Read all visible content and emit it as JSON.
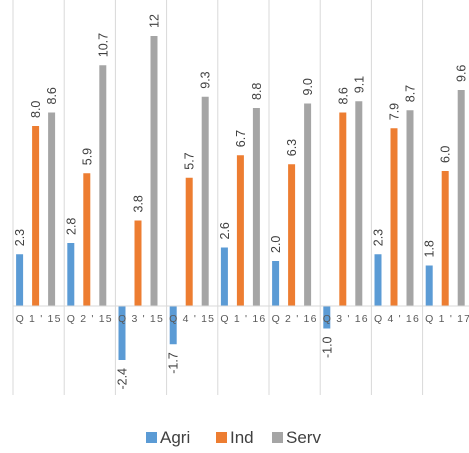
{
  "chart_data": {
    "type": "bar",
    "categories": [
      "Q1'15",
      "Q2'15",
      "Q3'15",
      "Q4'15",
      "Q1'16",
      "Q2'16",
      "Q3'16",
      "Q4'16",
      "Q1'17"
    ],
    "series": [
      {
        "name": "Agri",
        "color": "#5b9bd5",
        "values": [
          2.3,
          2.8,
          -2.4,
          -1.7,
          2.6,
          2.0,
          -1.0,
          2.3,
          1.8
        ]
      },
      {
        "name": "Ind",
        "color": "#ed7d31",
        "values": [
          8.0,
          5.9,
          3.8,
          5.7,
          6.7,
          6.3,
          8.6,
          7.9,
          6.0
        ]
      },
      {
        "name": "Serv",
        "color": "#a5a5a5",
        "values": [
          8.6,
          10.7,
          12.0,
          9.3,
          8.8,
          9.0,
          9.1,
          8.7,
          9.6
        ]
      }
    ],
    "value_labels": [
      [
        "2.3",
        "2.8",
        "-2.4",
        "-1.7",
        "2.6",
        "2.0",
        "-1.0",
        "2.3",
        "1.8"
      ],
      [
        "8.0",
        "5.9",
        "3.8",
        "5.7",
        "6.7",
        "6.3",
        "8.6",
        "7.9",
        "6.0"
      ],
      [
        "8.6",
        "10.7",
        "12",
        "9.3",
        "8.8",
        "9.0",
        "9.1",
        "8.7",
        "9.6"
      ]
    ],
    "ylim": [
      -4.0,
      12.0
    ],
    "title": "",
    "xlabel": "",
    "ylabel": "",
    "grid": "vertical category separators",
    "legend_position": "bottom"
  }
}
